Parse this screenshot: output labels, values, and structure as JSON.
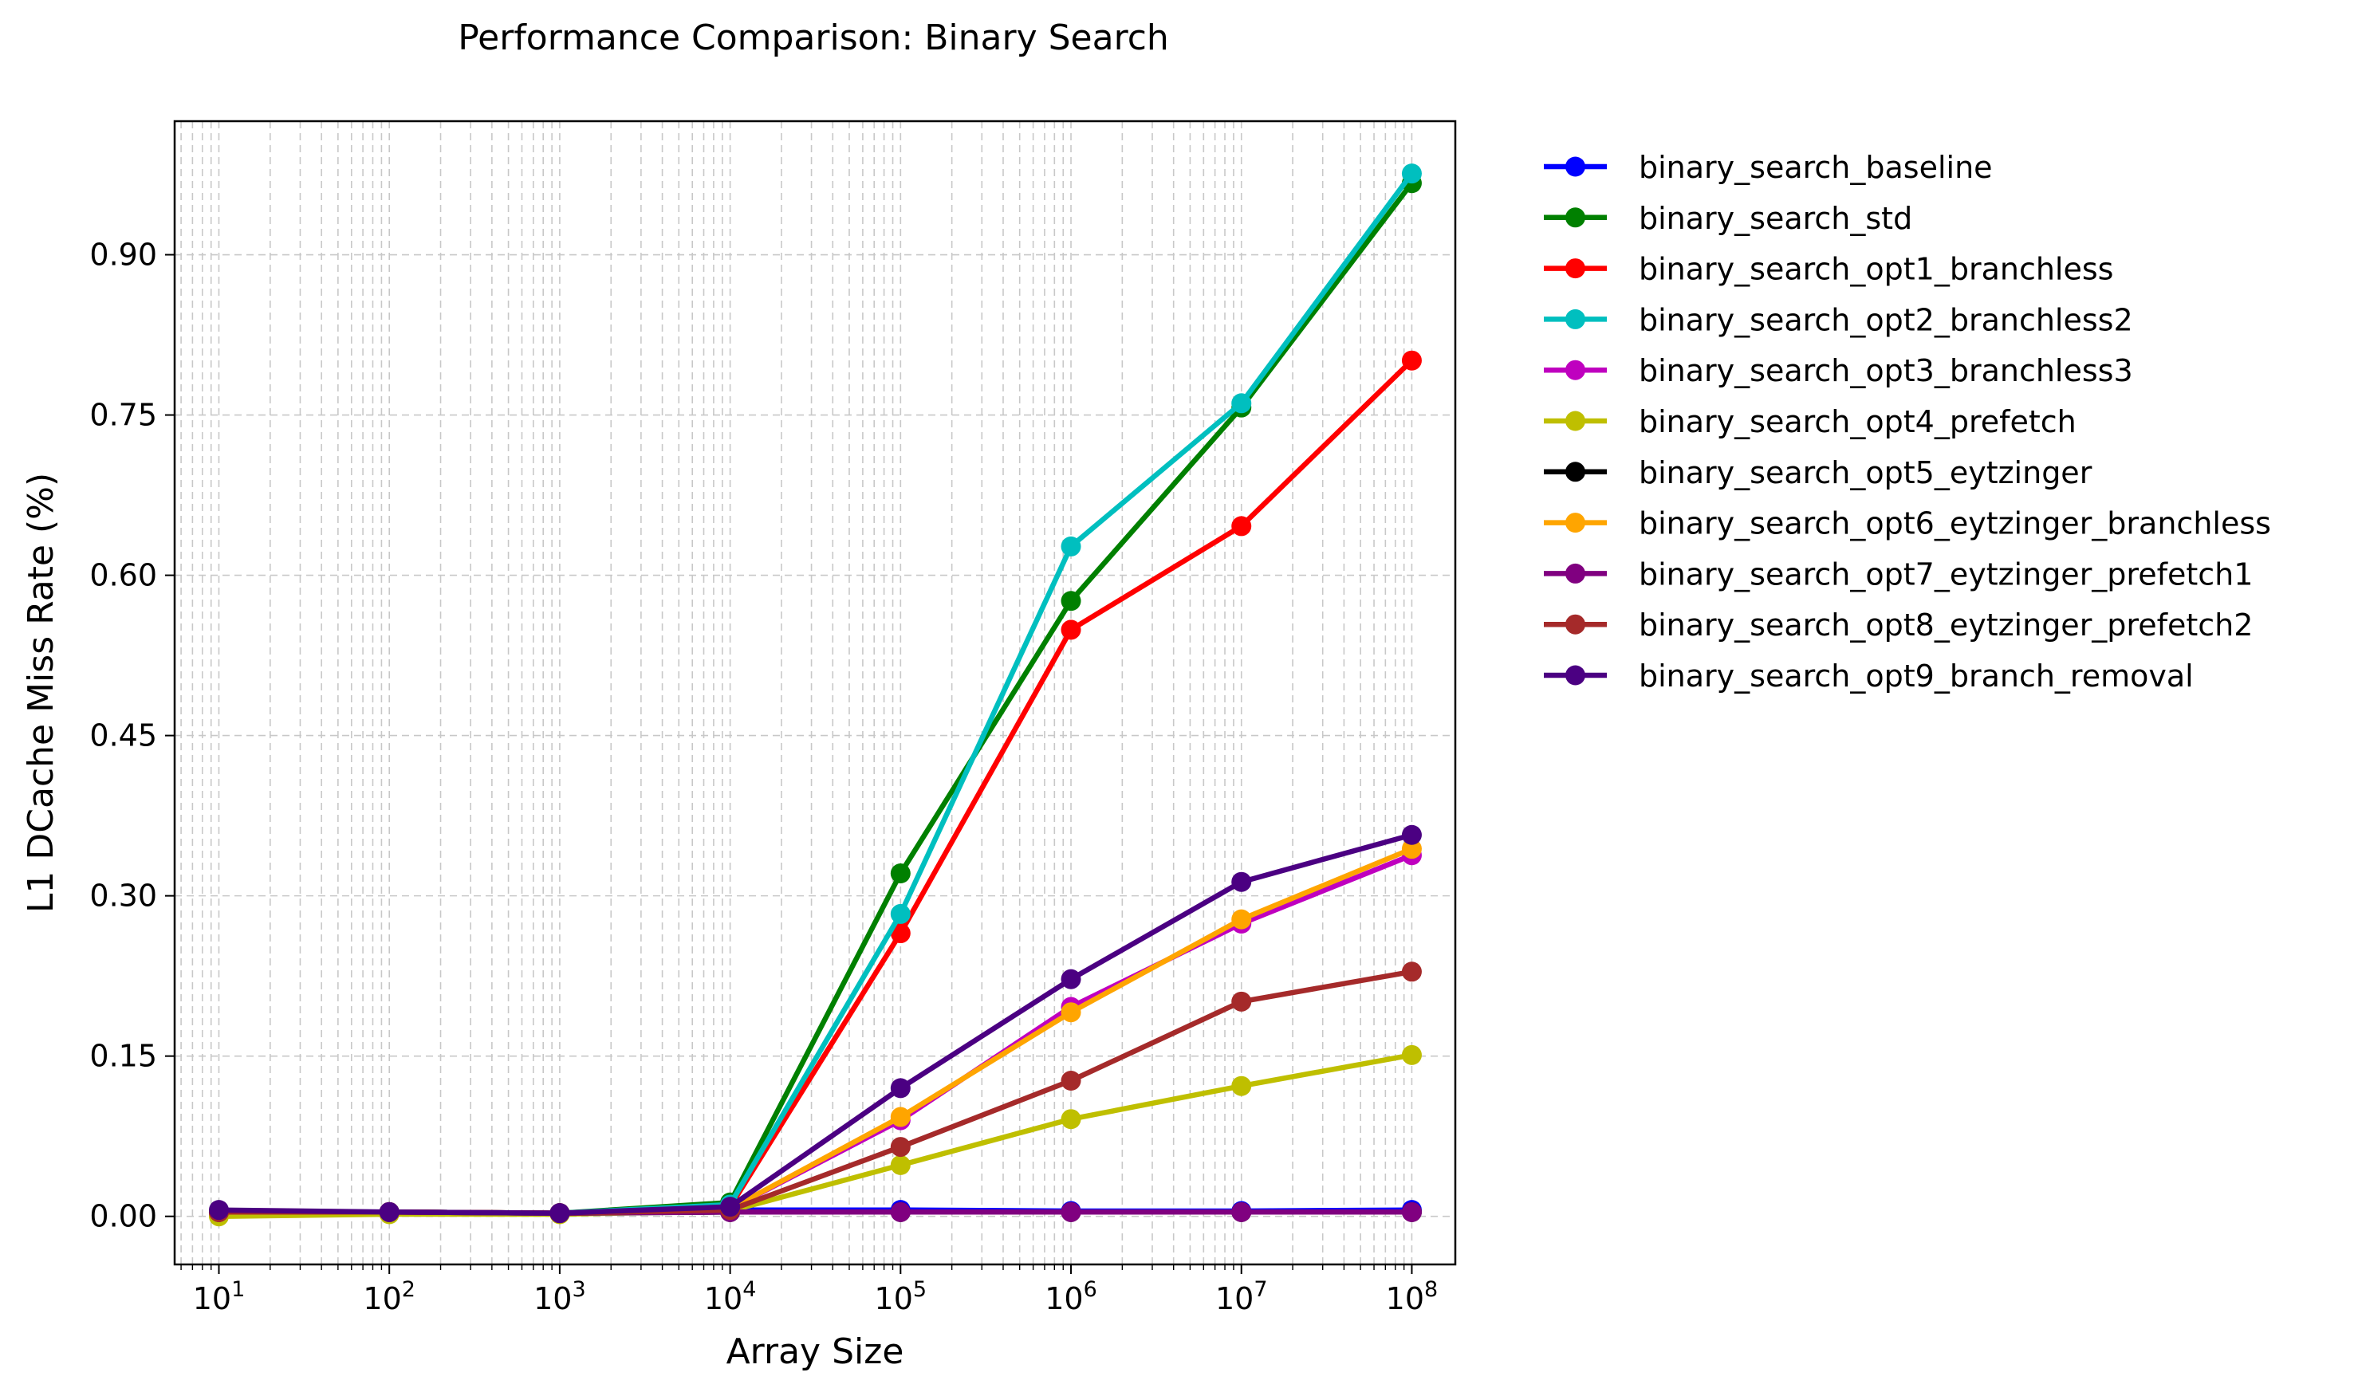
{
  "chart_data": {
    "type": "line",
    "title": "Performance Comparison: Binary Search",
    "xlabel": "Array Size",
    "ylabel": "L1 DCache Miss Rate (%)",
    "x_scale": "log",
    "xlim": [
      5.5,
      180000000
    ],
    "ylim": [
      -0.045,
      1.025
    ],
    "x": [
      10,
      100,
      1000,
      10000,
      100000,
      1000000,
      10000000,
      100000000
    ],
    "x_tick_labels": [
      {
        "base": "10",
        "exp": "1"
      },
      {
        "base": "10",
        "exp": "2"
      },
      {
        "base": "10",
        "exp": "3"
      },
      {
        "base": "10",
        "exp": "4"
      },
      {
        "base": "10",
        "exp": "5"
      },
      {
        "base": "10",
        "exp": "6"
      },
      {
        "base": "10",
        "exp": "7"
      },
      {
        "base": "10",
        "exp": "8"
      }
    ],
    "y_ticks": [
      0.0,
      0.15,
      0.3,
      0.45,
      0.6,
      0.75,
      0.9
    ],
    "y_tick_labels": [
      "0.00",
      "0.15",
      "0.30",
      "0.45",
      "0.60",
      "0.75",
      "0.90"
    ],
    "grid": true,
    "legend_position": "outside-right",
    "series": [
      {
        "name": "binary_search_baseline",
        "color": "#0000ff",
        "values": [
          0.004,
          0.004,
          0.003,
          0.006,
          0.006,
          0.005,
          0.005,
          0.006
        ]
      },
      {
        "name": "binary_search_std",
        "color": "#008000",
        "values": [
          0.004,
          0.004,
          0.003,
          0.013,
          0.321,
          0.576,
          0.757,
          0.967
        ]
      },
      {
        "name": "binary_search_opt1_branchless",
        "color": "#ff0000",
        "values": [
          0.004,
          0.004,
          0.003,
          0.009,
          0.265,
          0.549,
          0.646,
          0.801
        ]
      },
      {
        "name": "binary_search_opt2_branchless2",
        "color": "#00bfbf",
        "values": [
          0.004,
          0.004,
          0.003,
          0.011,
          0.283,
          0.627,
          0.761,
          0.976
        ]
      },
      {
        "name": "binary_search_opt3_branchless3",
        "color": "#bf00bf",
        "values": [
          0.004,
          0.004,
          0.003,
          0.007,
          0.09,
          0.196,
          0.274,
          0.338
        ]
      },
      {
        "name": "binary_search_opt4_prefetch",
        "color": "#bfbf00",
        "values": [
          0.0,
          0.002,
          0.002,
          0.005,
          0.048,
          0.091,
          0.122,
          0.151
        ]
      },
      {
        "name": "binary_search_opt5_eytzinger",
        "color": "#000000",
        "values": [
          0.004,
          0.004,
          0.003,
          0.004,
          0.004,
          0.004,
          0.004,
          0.004
        ]
      },
      {
        "name": "binary_search_opt6_eytzinger_branchless",
        "color": "#ffa500",
        "values": [
          0.004,
          0.004,
          0.003,
          0.007,
          0.093,
          0.191,
          0.278,
          0.344
        ]
      },
      {
        "name": "binary_search_opt7_eytzinger_prefetch1",
        "color": "#800080",
        "values": [
          0.004,
          0.004,
          0.003,
          0.004,
          0.004,
          0.004,
          0.004,
          0.004
        ]
      },
      {
        "name": "binary_search_opt8_eytzinger_prefetch2",
        "color": "#a52a2a",
        "values": [
          0.004,
          0.004,
          0.003,
          0.006,
          0.065,
          0.127,
          0.201,
          0.229
        ]
      },
      {
        "name": "binary_search_opt9_branch_removal",
        "color": "#4b0082",
        "values": [
          0.006,
          0.004,
          0.003,
          0.009,
          0.12,
          0.222,
          0.313,
          0.357
        ]
      }
    ]
  }
}
